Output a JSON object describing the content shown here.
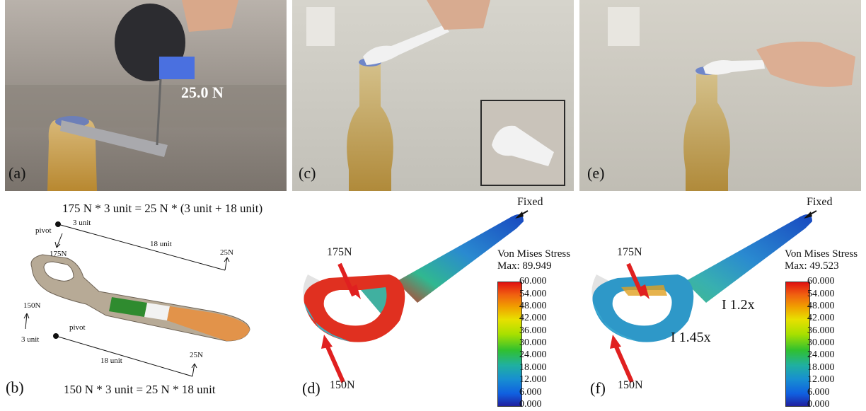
{
  "panels": {
    "a": {
      "label": "(a)",
      "reading": "25.0 N"
    },
    "c": {
      "label": "(c)"
    },
    "e": {
      "label": "(e)"
    },
    "b": {
      "label": "(b)",
      "top_equation": "175 N * 3 unit = 25 N * (3 unit + 18 unit)",
      "bottom_equation": "150 N * 3 unit = 25 N * 18 unit",
      "top_pivot": "pivot",
      "top_short_arm": "3 unit",
      "top_force_left": "175N",
      "top_long_arm": "18 unit",
      "top_force_right": "25N",
      "bottom_force_left": "150N",
      "bottom_pivot": "pivot",
      "bottom_short_arm": "3 unit",
      "bottom_long_arm": "18 unit",
      "bottom_force_right": "25N"
    },
    "d": {
      "label": "(d)",
      "fixed": "Fixed",
      "force_top": "175N",
      "force_bottom": "150N",
      "legend_title": "Von Mises Stress",
      "legend_max": "Max: 89.949"
    },
    "f": {
      "label": "(f)",
      "fixed": "Fixed",
      "force_top": "175N",
      "force_bottom": "150N",
      "legend_title": "Von Mises Stress",
      "legend_max": "Max: 49.523",
      "ratio_top": "I 1.2x",
      "ratio_bottom": "I 1.45x"
    }
  },
  "legend_ticks": [
    "60.000",
    "54.000",
    "48.000",
    "42.000",
    "36.000",
    "30.000",
    "24.000",
    "18.000",
    "12.000",
    "6.000",
    "0.000"
  ],
  "colors": {
    "stress_max": "#e01010",
    "stress_min": "#2020a0",
    "arrow": "#e02020"
  }
}
